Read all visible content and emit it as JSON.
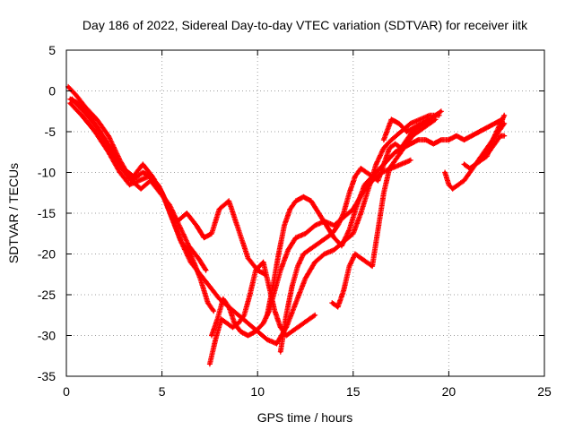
{
  "chart_data": {
    "type": "scatter",
    "title": "Day 186 of 2022, Sidereal Day-to-day VTEC variation (SDTVAR) for receiver iitk",
    "xlabel": "GPS time / hours",
    "ylabel": "SDTVAR / TECUs",
    "xlim": [
      0,
      25
    ],
    "ylim": [
      -35,
      5
    ],
    "xticks": [
      0,
      5,
      10,
      15,
      20,
      25
    ],
    "yticks": [
      5,
      0,
      -5,
      -10,
      -15,
      -20,
      -25,
      -30,
      -35
    ],
    "grid": true,
    "marker": "+",
    "color": "#ff0000",
    "series": [
      {
        "x": [
          0.2,
          0.8,
          1.5,
          2.2,
          2.8,
          3.3,
          3.8,
          4.3,
          4.8,
          5.2,
          5.6,
          6.0,
          6.5,
          7.0,
          7.4,
          7.7
        ],
        "y": [
          -1.5,
          -3.0,
          -5.0,
          -7.5,
          -10.0,
          -11.5,
          -11.0,
          -10.5,
          -11.5,
          -13.5,
          -16.0,
          -18.5,
          -20.0,
          -23.0,
          -26.0,
          -27.0
        ]
      },
      {
        "x": [
          0.3,
          0.9,
          1.6,
          2.3,
          2.9,
          3.4,
          4.0,
          4.4,
          4.9,
          5.4,
          5.8,
          6.3,
          6.8,
          7.2,
          7.6,
          8.0,
          8.5,
          9.0,
          9.5,
          10.0,
          10.4
        ],
        "y": [
          -1.0,
          -2.5,
          -4.5,
          -7.0,
          -9.5,
          -11.0,
          -10.0,
          -10.5,
          -12.0,
          -14.5,
          -16.0,
          -15.0,
          -16.5,
          -18.0,
          -17.5,
          -14.5,
          -13.5,
          -17.0,
          -20.5,
          -22.0,
          -22.5
        ]
      },
      {
        "x": [
          0.2,
          0.6,
          1.2,
          1.9,
          2.5,
          3.0,
          3.5,
          4.0,
          4.5,
          5.0,
          5.5,
          6.0,
          6.5,
          7.0,
          7.5,
          8.0,
          8.5,
          9.0,
          9.5,
          10.0,
          10.5,
          11.0,
          11.5,
          12.0,
          12.5,
          13.0,
          13.5,
          14.0,
          14.5,
          15.0,
          15.4,
          15.8,
          16.2,
          16.6,
          17.0,
          17.5,
          18.0,
          18.5,
          19.0,
          19.5
        ],
        "y": [
          -1.0,
          -1.5,
          -3.0,
          -5.5,
          -8.0,
          -9.5,
          -10.5,
          -9.0,
          -10.5,
          -12.5,
          -15.5,
          -18.5,
          -21.0,
          -22.5,
          -24.0,
          -25.5,
          -26.5,
          -27.5,
          -28.5,
          -29.5,
          -30.5,
          -31.0,
          -29.0,
          -26.0,
          -23.0,
          -21.0,
          -20.0,
          -19.5,
          -18.5,
          -17.5,
          -15.0,
          -12.0,
          -9.0,
          -7.0,
          -6.0,
          -5.0,
          -4.0,
          -3.5,
          -3.0,
          -3.0
        ]
      },
      {
        "x": [
          0.1,
          0.5,
          1.0,
          1.6,
          2.2,
          2.8,
          3.4,
          3.9,
          4.4,
          4.9,
          5.4,
          5.9,
          6.4,
          6.9,
          7.3
        ],
        "y": [
          0.5,
          -0.5,
          -2.0,
          -3.5,
          -5.5,
          -8.5,
          -11.0,
          -12.0,
          -11.0,
          -12.5,
          -14.0,
          -16.5,
          -19.0,
          -20.5,
          -22.0
        ]
      },
      {
        "x": [
          7.6,
          7.9,
          8.2,
          8.5,
          8.8,
          9.1,
          9.5,
          9.9,
          10.3,
          10.6,
          10.9,
          11.2,
          11.6,
          12.0,
          12.5,
          13.0,
          13.5,
          14.0,
          14.5,
          15.0,
          15.5,
          16.0,
          16.5,
          17.0,
          17.5,
          18.0
        ],
        "y": [
          -30.0,
          -28.0,
          -25.5,
          -26.5,
          -28.5,
          -29.5,
          -30.0,
          -29.5,
          -28.5,
          -27.0,
          -24.5,
          -22.0,
          -19.5,
          -18.0,
          -17.5,
          -16.5,
          -16.0,
          -16.5,
          -15.5,
          -14.5,
          -12.5,
          -11.0,
          -10.0,
          -9.5,
          -9.0,
          -8.5
        ]
      },
      {
        "x": [
          7.5,
          7.8,
          8.1,
          8.4,
          8.7,
          9.0,
          9.3,
          9.6,
          9.9,
          10.3,
          10.6,
          10.9,
          11.2,
          11.5,
          11.8,
          12.1,
          12.4,
          12.7,
          13.0
        ],
        "y": [
          -33.5,
          -30.5,
          -28.0,
          -28.5,
          -29.0,
          -28.5,
          -27.5,
          -25.0,
          -22.0,
          -21.0,
          -24.0,
          -27.0,
          -29.0,
          -30.0,
          -29.5,
          -29.0,
          -28.5,
          -28.0,
          -27.5
        ]
      },
      {
        "x": [
          10.5,
          10.8,
          11.1,
          11.4,
          11.7,
          12.0,
          12.4,
          12.8,
          13.2,
          13.6,
          14.0,
          14.4,
          14.8,
          15.2,
          15.6,
          16.0,
          16.4,
          16.8,
          17.2,
          17.6,
          18.0,
          18.4,
          18.8,
          19.2,
          19.6,
          20.0,
          20.4,
          20.8,
          21.2,
          21.6,
          22.0,
          22.4,
          22.8
        ],
        "y": [
          -27.5,
          -24.0,
          -20.0,
          -16.5,
          -14.5,
          -13.5,
          -13.0,
          -13.5,
          -15.0,
          -16.5,
          -18.0,
          -19.0,
          -17.0,
          -14.0,
          -11.5,
          -10.5,
          -9.5,
          -8.5,
          -7.5,
          -7.0,
          -6.5,
          -6.0,
          -6.0,
          -6.5,
          -6.0,
          -6.0,
          -5.5,
          -6.0,
          -5.5,
          -5.0,
          -4.5,
          -4.0,
          -3.5
        ]
      },
      {
        "x": [
          11.2,
          11.5,
          11.8,
          12.1,
          12.4,
          12.7,
          13.0,
          13.3,
          13.6,
          13.9,
          14.2,
          14.5,
          14.8,
          15.1,
          15.4,
          15.7,
          16.0,
          16.3,
          16.6,
          16.9,
          17.2,
          17.5,
          17.8,
          18.1,
          18.4,
          18.7,
          19.0
        ],
        "y": [
          -32.0,
          -27.5,
          -24.0,
          -21.5,
          -20.0,
          -19.5,
          -19.0,
          -18.5,
          -18.0,
          -17.5,
          -16.5,
          -15.0,
          -12.5,
          -10.5,
          -9.5,
          -10.0,
          -10.5,
          -11.0,
          -9.0,
          -7.0,
          -6.5,
          -7.0,
          -6.0,
          -5.0,
          -4.5,
          -4.0,
          -3.5
        ]
      },
      {
        "x": [
          13.9,
          14.2,
          14.5,
          14.8,
          15.1,
          15.4,
          15.7,
          16.0,
          16.3,
          16.6,
          16.9,
          17.2,
          17.5,
          17.8,
          18.1,
          18.4,
          18.7,
          19.0,
          19.3
        ],
        "y": [
          -26.0,
          -26.5,
          -24.5,
          -21.5,
          -20.0,
          -20.5,
          -21.0,
          -21.5,
          -17.0,
          -12.5,
          -9.5,
          -8.5,
          -7.5,
          -6.5,
          -5.5,
          -5.0,
          -4.5,
          -4.0,
          -3.5
        ]
      },
      {
        "x": [
          16.6,
          17.0,
          17.4,
          17.8,
          18.2,
          18.6,
          19.0,
          19.3,
          19.6
        ],
        "y": [
          -6.0,
          -3.5,
          -4.0,
          -5.0,
          -4.5,
          -4.0,
          -3.5,
          -3.0,
          -2.5
        ]
      },
      {
        "x": [
          19.8,
          20.0,
          20.2,
          20.5,
          20.8,
          21.1,
          21.4,
          21.7,
          22.0,
          22.3,
          22.6,
          22.9
        ],
        "y": [
          -10.0,
          -11.5,
          -12.0,
          -11.5,
          -11.0,
          -10.0,
          -9.0,
          -8.0,
          -7.0,
          -6.0,
          -5.0,
          -4.0
        ]
      },
      {
        "x": [
          20.8,
          21.1,
          21.4,
          21.7,
          22.0,
          22.3,
          22.6,
          22.9
        ],
        "y": [
          -9.0,
          -9.5,
          -9.0,
          -8.5,
          -8.0,
          -6.0,
          -4.5,
          -3.0
        ]
      },
      {
        "x": [
          21.8,
          22.1,
          22.4,
          22.7,
          22.9
        ],
        "y": [
          -8.0,
          -7.5,
          -6.5,
          -5.5,
          -5.5
        ]
      }
    ]
  }
}
